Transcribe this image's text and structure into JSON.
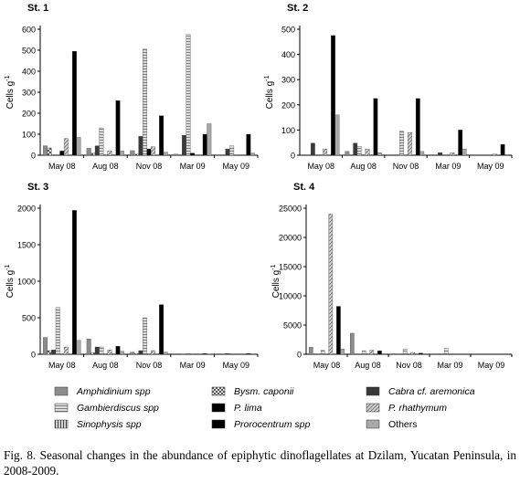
{
  "figure": {
    "ylabel": "Cells g",
    "ylabel_sup": "-1",
    "caption": "Fig. 8. Seasonal changes in the abundance of epiphytic dinoflagellates at Dzilam, Yucatan Peninsula, in 2008-2009."
  },
  "legend": {
    "placement": "bottom",
    "items": [
      {
        "name": "Amphidinium spp",
        "color": "#8c8c8c",
        "pattern": "solid"
      },
      {
        "name": "Bysm. caponii",
        "color": "#6e6e6e",
        "pattern": "checker"
      },
      {
        "name": "Cabra cf. aremonica",
        "color": "#3a3a3a",
        "pattern": "solid"
      },
      {
        "name": "Gambierdiscus spp",
        "color": "#b8b8b8",
        "pattern": "hstripe"
      },
      {
        "name": "P. lima",
        "color": "#000000",
        "pattern": "solid"
      },
      {
        "name": "P. rhathymum",
        "color": "#9a9a9a",
        "pattern": "diagonal"
      },
      {
        "name": "Sinophysis spp",
        "color": "#5a5a5a",
        "pattern": "vstripe"
      },
      {
        "name": "Prorocentrum spp",
        "color": "#000000",
        "pattern": "solid"
      },
      {
        "name": "Others",
        "color": "#a8a8a8",
        "pattern": "solid"
      }
    ]
  },
  "chart_data": [
    {
      "type": "bar",
      "title": "St. 1",
      "ylabel": "Cells g-1",
      "ylim": [
        0,
        600
      ],
      "yticks": [
        0,
        100,
        200,
        300,
        400,
        500,
        600
      ],
      "categories": [
        "May 08",
        "Aug 08",
        "Nov 08",
        "Mar 09",
        "May 09"
      ],
      "series": [
        {
          "name": "Amphidinium spp",
          "values": [
            45,
            33,
            22,
            5,
            0
          ]
        },
        {
          "name": "Bysm. caponii",
          "values": [
            35,
            10,
            5,
            0,
            0
          ]
        },
        {
          "name": "Cabra cf. aremonica",
          "values": [
            0,
            45,
            90,
            95,
            30
          ]
        },
        {
          "name": "Gambierdiscus spp",
          "values": [
            0,
            130,
            505,
            575,
            45
          ]
        },
        {
          "name": "P. lima",
          "values": [
            20,
            0,
            30,
            10,
            0
          ]
        },
        {
          "name": "P. rhathymum",
          "values": [
            80,
            20,
            40,
            0,
            0
          ]
        },
        {
          "name": "Sinophysis spp",
          "values": [
            0,
            0,
            0,
            0,
            0
          ]
        },
        {
          "name": "Prorocentrum spp",
          "values": [
            495,
            260,
            188,
            100,
            100
          ]
        },
        {
          "name": "Others",
          "values": [
            85,
            20,
            15,
            150,
            10
          ]
        }
      ]
    },
    {
      "type": "bar",
      "title": "St. 2",
      "ylabel": "Cells g-1",
      "ylim": [
        0,
        500
      ],
      "yticks": [
        0,
        100,
        200,
        300,
        400,
        500
      ],
      "categories": [
        "May 08",
        "Aug 08",
        "Nov 08",
        "Mar 09",
        "May 09"
      ],
      "series": [
        {
          "name": "Amphidinium spp",
          "values": [
            0,
            15,
            0,
            0,
            0
          ]
        },
        {
          "name": "Bysm. caponii",
          "values": [
            0,
            0,
            0,
            0,
            0
          ]
        },
        {
          "name": "Cabra cf. aremonica",
          "values": [
            48,
            48,
            0,
            10,
            0
          ]
        },
        {
          "name": "Gambierdiscus spp",
          "values": [
            0,
            35,
            95,
            0,
            0
          ]
        },
        {
          "name": "P. lima",
          "values": [
            0,
            0,
            0,
            0,
            0
          ]
        },
        {
          "name": "P. rhathymum",
          "values": [
            25,
            25,
            90,
            10,
            5
          ]
        },
        {
          "name": "Sinophysis spp",
          "values": [
            0,
            0,
            0,
            0,
            0
          ]
        },
        {
          "name": "Prorocentrum spp",
          "values": [
            475,
            225,
            225,
            100,
            43
          ]
        },
        {
          "name": "Others",
          "values": [
            160,
            10,
            15,
            25,
            0
          ]
        }
      ]
    },
    {
      "type": "bar",
      "title": "St. 3",
      "ylabel": "Cells g-1",
      "ylim": [
        0,
        2000
      ],
      "yticks": [
        0,
        500,
        1000,
        1500,
        2000
      ],
      "categories": [
        "May 08",
        "Aug 08",
        "Nov 08",
        "Mar 09",
        "May 09"
      ],
      "series": [
        {
          "name": "Amphidinium spp",
          "values": [
            230,
            210,
            30,
            0,
            0
          ]
        },
        {
          "name": "Bysm. caponii",
          "values": [
            50,
            20,
            10,
            0,
            0
          ]
        },
        {
          "name": "Cabra cf. aremonica",
          "values": [
            60,
            100,
            50,
            5,
            10
          ]
        },
        {
          "name": "Gambierdiscus spp",
          "values": [
            640,
            100,
            500,
            10,
            0
          ]
        },
        {
          "name": "P. lima",
          "values": [
            0,
            0,
            0,
            0,
            0
          ]
        },
        {
          "name": "P. rhathymum",
          "values": [
            100,
            60,
            50,
            0,
            0
          ]
        },
        {
          "name": "Sinophysis spp",
          "values": [
            0,
            0,
            0,
            0,
            0
          ]
        },
        {
          "name": "Prorocentrum spp",
          "values": [
            1970,
            110,
            680,
            10,
            10
          ]
        },
        {
          "name": "Others",
          "values": [
            190,
            40,
            30,
            5,
            0
          ]
        }
      ]
    },
    {
      "type": "bar",
      "title": "St. 4",
      "ylabel": "Cells g-1",
      "ylim": [
        0,
        25000
      ],
      "yticks": [
        0,
        5000,
        10000,
        15000,
        20000,
        25000
      ],
      "categories": [
        "May 08",
        "Aug 08",
        "Nov 08",
        "Mar 09",
        "May 09"
      ],
      "series": [
        {
          "name": "Amphidinium spp",
          "values": [
            1200,
            3600,
            100,
            0,
            0
          ]
        },
        {
          "name": "Bysm. caponii",
          "values": [
            0,
            0,
            0,
            0,
            0
          ]
        },
        {
          "name": "Cabra cf. aremonica",
          "values": [
            0,
            0,
            0,
            0,
            0
          ]
        },
        {
          "name": "Gambierdiscus spp",
          "values": [
            700,
            600,
            900,
            1000,
            0
          ]
        },
        {
          "name": "P. lima",
          "values": [
            0,
            0,
            0,
            0,
            0
          ]
        },
        {
          "name": "P. rhathymum",
          "values": [
            24000,
            700,
            300,
            0,
            0
          ]
        },
        {
          "name": "Sinophysis spp",
          "values": [
            0,
            0,
            0,
            0,
            0
          ]
        },
        {
          "name": "Prorocentrum spp",
          "values": [
            8200,
            600,
            200,
            0,
            0
          ]
        },
        {
          "name": "Others",
          "values": [
            900,
            0,
            0,
            0,
            0
          ]
        }
      ]
    }
  ]
}
